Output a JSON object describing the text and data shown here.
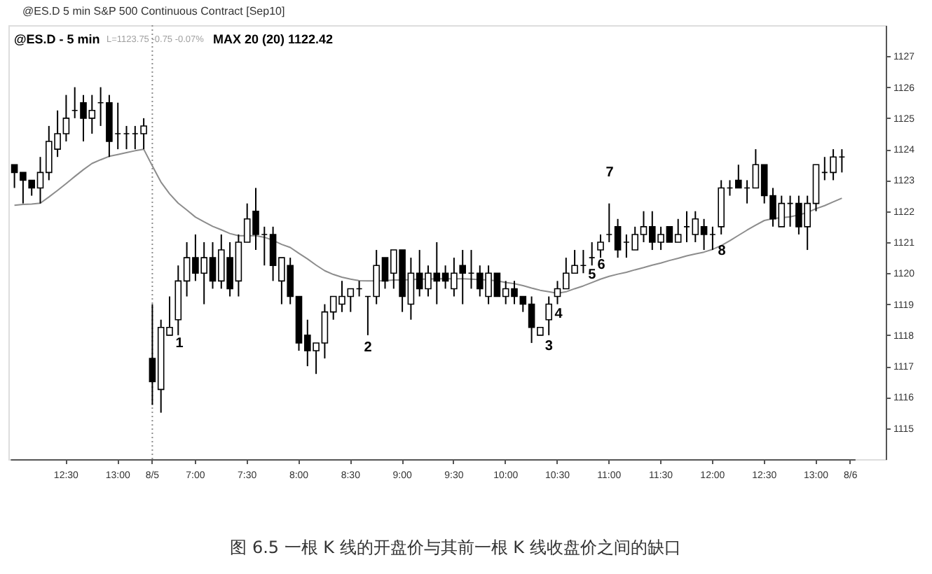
{
  "chart_data": {
    "type": "candlestick",
    "title": "@ES.D 5 min S&P 500 Continuous Contract [Sep10]",
    "subtitle": "@ES.D - 5 min",
    "categories": [
      null,
      null,
      null,
      null,
      null,
      null,
      "12:30",
      null,
      null,
      null,
      null,
      null,
      "13:00",
      null,
      null,
      null,
      "8/5",
      null,
      null,
      null,
      null,
      "7:00",
      null,
      null,
      null,
      null,
      null,
      "7:30",
      null,
      null,
      null,
      null,
      null,
      "8:00",
      null,
      null,
      null,
      null,
      null,
      "8:30",
      null,
      null,
      null,
      null,
      null,
      "9:00",
      null,
      null,
      null,
      null,
      null,
      "9:30",
      null,
      null,
      null,
      null,
      null,
      "10:00",
      null,
      null,
      null,
      null,
      null,
      "10:30",
      null,
      null,
      null,
      null,
      null,
      "11:00",
      null,
      null,
      null,
      null,
      null,
      "11:30",
      null,
      null,
      null,
      null,
      null,
      "12:00",
      null,
      null,
      null,
      null,
      null,
      "12:30",
      null,
      null,
      null,
      null,
      null,
      "13:00",
      null,
      null,
      null,
      "8/6"
    ],
    "ohlc": [
      [
        1123.5,
        1123.5,
        1122.75,
        1123.25
      ],
      [
        1123.25,
        1123.25,
        1122.25,
        1123.0
      ],
      [
        1123.0,
        1123.0,
        1122.5,
        1122.75
      ],
      [
        1122.75,
        1123.75,
        1122.25,
        1123.25
      ],
      [
        1123.25,
        1124.75,
        1123.0,
        1124.25
      ],
      [
        1124.0,
        1125.25,
        1123.75,
        1124.5
      ],
      [
        1124.5,
        1125.75,
        1124.25,
        1125.0
      ],
      [
        1125.25,
        1126.0,
        1125.0,
        1125.25
      ],
      [
        1125.5,
        1125.75,
        1124.25,
        1125.0
      ],
      [
        1125.0,
        1125.75,
        1124.5,
        1125.25
      ],
      [
        1125.5,
        1126.0,
        1124.75,
        1125.5
      ],
      [
        1125.5,
        1125.75,
        1123.75,
        1124.25
      ],
      [
        1124.5,
        1125.5,
        1124.0,
        1124.5
      ],
      [
        1124.5,
        1124.75,
        1124.0,
        1124.5
      ],
      [
        1124.5,
        1124.75,
        1124.0,
        1124.5
      ],
      [
        1124.5,
        1125.0,
        1124.0,
        1124.75
      ],
      [
        1117.25,
        1119.0,
        1115.75,
        1116.5
      ],
      [
        1116.25,
        1118.5,
        1115.5,
        1118.25
      ],
      [
        1118.0,
        1119.25,
        1118.0,
        1118.25
      ],
      [
        1118.5,
        1120.25,
        1118.0,
        1119.75
      ],
      [
        1119.75,
        1121.0,
        1119.25,
        1120.5
      ],
      [
        1120.5,
        1121.25,
        1119.75,
        1120.0
      ],
      [
        1120.0,
        1121.0,
        1119.0,
        1120.5
      ],
      [
        1120.5,
        1121.0,
        1119.5,
        1119.75
      ],
      [
        1119.75,
        1121.25,
        1119.5,
        1120.75
      ],
      [
        1120.5,
        1121.0,
        1119.25,
        1119.5
      ],
      [
        1119.75,
        1121.25,
        1119.25,
        1121.0
      ],
      [
        1121.0,
        1122.25,
        1121.0,
        1121.75
      ],
      [
        1122.0,
        1122.75,
        1120.75,
        1121.25
      ],
      [
        1121.25,
        1121.5,
        1120.25,
        1121.25
      ],
      [
        1121.25,
        1121.5,
        1119.75,
        1120.25
      ],
      [
        1119.75,
        1120.5,
        1119.0,
        1120.5
      ],
      [
        1120.25,
        1120.5,
        1119.0,
        1119.25
      ],
      [
        1119.25,
        1119.25,
        1117.5,
        1117.75
      ],
      [
        1118.0,
        1118.5,
        1117.0,
        1117.5
      ],
      [
        1117.5,
        1117.75,
        1116.75,
        1117.75
      ],
      [
        1117.75,
        1119.0,
        1117.25,
        1118.75
      ],
      [
        1118.75,
        1119.25,
        1118.5,
        1119.25
      ],
      [
        1119.0,
        1119.75,
        1118.75,
        1119.25
      ],
      [
        1119.25,
        1119.5,
        1118.75,
        1119.5
      ],
      [
        1119.5,
        1119.75,
        1119.25,
        1119.5
      ],
      [
        1119.25,
        1119.25,
        1118.0,
        1119.25
      ],
      [
        1119.25,
        1120.75,
        1119.0,
        1120.25
      ],
      [
        1120.5,
        1120.5,
        1119.5,
        1119.75
      ],
      [
        1120.0,
        1120.75,
        1119.5,
        1120.75
      ],
      [
        1120.75,
        1120.75,
        1118.75,
        1119.25
      ],
      [
        1119.0,
        1120.5,
        1118.5,
        1120.0
      ],
      [
        1120.0,
        1120.75,
        1119.25,
        1119.5
      ],
      [
        1119.5,
        1120.25,
        1119.25,
        1120.0
      ],
      [
        1120.0,
        1121.0,
        1119.0,
        1119.75
      ],
      [
        1120.0,
        1120.25,
        1119.5,
        1119.75
      ],
      [
        1119.5,
        1120.5,
        1119.25,
        1120.0
      ],
      [
        1120.25,
        1120.75,
        1119.0,
        1120.0
      ],
      [
        1120.0,
        1120.75,
        1119.5,
        1120.0
      ],
      [
        1120.0,
        1120.25,
        1119.25,
        1119.5
      ],
      [
        1119.25,
        1120.25,
        1119.0,
        1120.0
      ],
      [
        1120.0,
        1120.0,
        1119.25,
        1119.25
      ],
      [
        1119.25,
        1119.75,
        1119.0,
        1119.5
      ],
      [
        1119.5,
        1119.75,
        1119.0,
        1119.25
      ],
      [
        1119.25,
        1119.25,
        1118.75,
        1119.0
      ],
      [
        1119.0,
        1119.25,
        1117.75,
        1118.25
      ],
      [
        1118.0,
        1118.25,
        1118.0,
        1118.25
      ],
      [
        1118.5,
        1119.25,
        1118.0,
        1119.0
      ],
      [
        1119.25,
        1119.75,
        1119.0,
        1119.5
      ],
      [
        1119.5,
        1120.5,
        1119.5,
        1120.0
      ],
      [
        1120.0,
        1120.75,
        1120.0,
        1120.25
      ],
      [
        1120.25,
        1120.75,
        1120.0,
        1120.25
      ],
      [
        1120.5,
        1121.0,
        1120.25,
        1120.5
      ],
      [
        1120.75,
        1121.25,
        1120.5,
        1121.0
      ],
      [
        1121.25,
        1122.25,
        1121.0,
        1121.25
      ],
      [
        1121.5,
        1121.75,
        1120.5,
        1120.75
      ],
      [
        1121.0,
        1121.25,
        1120.5,
        1121.0
      ],
      [
        1120.75,
        1121.5,
        1120.75,
        1121.25
      ],
      [
        1121.25,
        1122.0,
        1121.0,
        1121.5
      ],
      [
        1121.5,
        1122.0,
        1120.75,
        1121.0
      ],
      [
        1121.0,
        1121.5,
        1120.75,
        1121.25
      ],
      [
        1121.5,
        1121.5,
        1121.0,
        1121.0
      ],
      [
        1121.0,
        1121.75,
        1121.0,
        1121.25
      ],
      [
        1121.5,
        1122.0,
        1121.0,
        1121.5
      ],
      [
        1121.25,
        1122.0,
        1121.0,
        1121.75
      ],
      [
        1121.5,
        1121.75,
        1120.75,
        1121.25
      ],
      [
        1121.25,
        1121.5,
        1120.75,
        1121.25
      ],
      [
        1121.5,
        1123.0,
        1121.25,
        1122.75
      ],
      [
        1122.75,
        1123.0,
        1122.5,
        1122.75
      ],
      [
        1123.0,
        1123.5,
        1122.75,
        1122.75
      ],
      [
        1122.75,
        1123.0,
        1122.25,
        1122.75
      ],
      [
        1122.75,
        1124.0,
        1122.75,
        1123.5
      ],
      [
        1123.5,
        1123.5,
        1122.25,
        1122.5
      ],
      [
        1122.5,
        1122.75,
        1121.5,
        1121.75
      ],
      [
        1121.5,
        1122.5,
        1121.5,
        1122.25
      ],
      [
        1122.25,
        1122.5,
        1121.5,
        1122.25
      ],
      [
        1122.25,
        1122.5,
        1121.25,
        1121.5
      ],
      [
        1121.5,
        1122.5,
        1120.75,
        1122.25
      ],
      [
        1122.25,
        1123.5,
        1122.0,
        1123.5
      ],
      [
        1123.25,
        1123.75,
        1123.0,
        1123.25
      ],
      [
        1123.25,
        1124.0,
        1123.0,
        1123.75
      ],
      [
        1123.75,
        1124.0,
        1123.25,
        1123.75
      ],
      null
    ],
    "color": "#000000",
    "colors": [
      "#000000",
      "#000000",
      "#000000",
      "#ffffff",
      "#ffffff",
      "#ffffff",
      "#ffffff",
      "#000000",
      "#000000",
      "#ffffff",
      "#000000",
      "#000000",
      "#000000",
      "#000000",
      "#000000",
      "#ffffff",
      "#000000",
      "#ffffff",
      "#ffffff",
      "#ffffff",
      "#ffffff",
      "#000000",
      "#ffffff",
      "#000000",
      "#ffffff",
      "#000000",
      "#ffffff",
      "#ffffff",
      "#000000",
      "#000000",
      "#000000",
      "#ffffff",
      "#000000",
      "#000000",
      "#000000",
      "#ffffff",
      "#ffffff",
      "#ffffff",
      "#ffffff",
      "#ffffff",
      "#000000",
      "#000000",
      "#ffffff",
      "#000000",
      "#ffffff",
      "#000000",
      "#ffffff",
      "#000000",
      "#ffffff",
      "#000000",
      "#000000",
      "#ffffff",
      "#000000",
      "#000000",
      "#000000",
      "#ffffff",
      "#000000",
      "#ffffff",
      "#000000",
      "#000000",
      "#000000",
      "#ffffff",
      "#ffffff",
      "#ffffff",
      "#ffffff",
      "#ffffff",
      "#000000",
      "#000000",
      "#ffffff",
      "#000000",
      "#000000",
      "#000000",
      "#ffffff",
      "#ffffff",
      "#000000",
      "#ffffff",
      "#000000",
      "#ffffff",
      "#000000",
      "#ffffff",
      "#000000",
      "#000000",
      "#ffffff",
      "#000000",
      "#000000",
      "#000000",
      "#ffffff",
      "#000000",
      "#000000",
      "#ffffff",
      "#000000",
      "#000000",
      "#ffffff",
      "#ffffff",
      "#000000",
      "#ffffff",
      "#000000",
      null
    ],
    "series": [
      {
        "type": "line",
        "color": "#8c8c8c",
        "values": [
          1122.19,
          1122.22,
          1122.23,
          1122.26,
          1122.46,
          1122.67,
          1122.89,
          1123.12,
          1123.34,
          1123.54,
          1123.66,
          1123.77,
          1123.83,
          1123.89,
          1123.95,
          1124.0,
          1123.46,
          1122.94,
          1122.56,
          1122.26,
          1122.04,
          1121.81,
          1121.66,
          1121.51,
          1121.4,
          1121.28,
          1121.21,
          1121.21,
          1121.21,
          1121.16,
          1121.06,
          1120.93,
          1120.83,
          1120.64,
          1120.46,
          1120.26,
          1120.08,
          1119.96,
          1119.87,
          1119.81,
          1119.76,
          1119.75,
          1119.75,
          1119.76,
          1119.78,
          1119.78,
          1119.79,
          1119.81,
          1119.81,
          1119.82,
          1119.82,
          1119.82,
          1119.82,
          1119.81,
          1119.79,
          1119.78,
          1119.75,
          1119.7,
          1119.66,
          1119.6,
          1119.52,
          1119.45,
          1119.4,
          1119.35,
          1119.4,
          1119.5,
          1119.59,
          1119.7,
          1119.81,
          1119.9,
          1119.97,
          1120.03,
          1120.11,
          1120.18,
          1120.26,
          1120.33,
          1120.41,
          1120.48,
          1120.56,
          1120.62,
          1120.68,
          1120.77,
          1120.89,
          1121.05,
          1121.22,
          1121.39,
          1121.55,
          1121.7,
          1121.76,
          1121.79,
          1121.82,
          1121.88,
          1121.96,
          1122.08,
          1122.18,
          1122.3,
          1122.42,
          null
        ]
      }
    ],
    "ylim": [
      1114,
      1128
    ],
    "yticks": [
      1115,
      1116,
      1117,
      1118,
      1119,
      1120,
      1121,
      1122,
      1123,
      1124,
      1125,
      1126,
      1127
    ],
    "ref_lines": [
      {
        "axis": "x",
        "value": "8/5",
        "line_style": "dotted",
        "color": "#8c8c8c"
      }
    ],
    "annotations": [
      "L=1123.75 -0.75 -0.07%",
      "MAX 20 (20) 1122.42",
      "1",
      "2",
      "3",
      "4",
      "5",
      "6",
      "7",
      "8",
      "图 6.5  一根 K 线的开盘价与其前一根 K 线收盘价之间的缺口"
    ]
  }
}
